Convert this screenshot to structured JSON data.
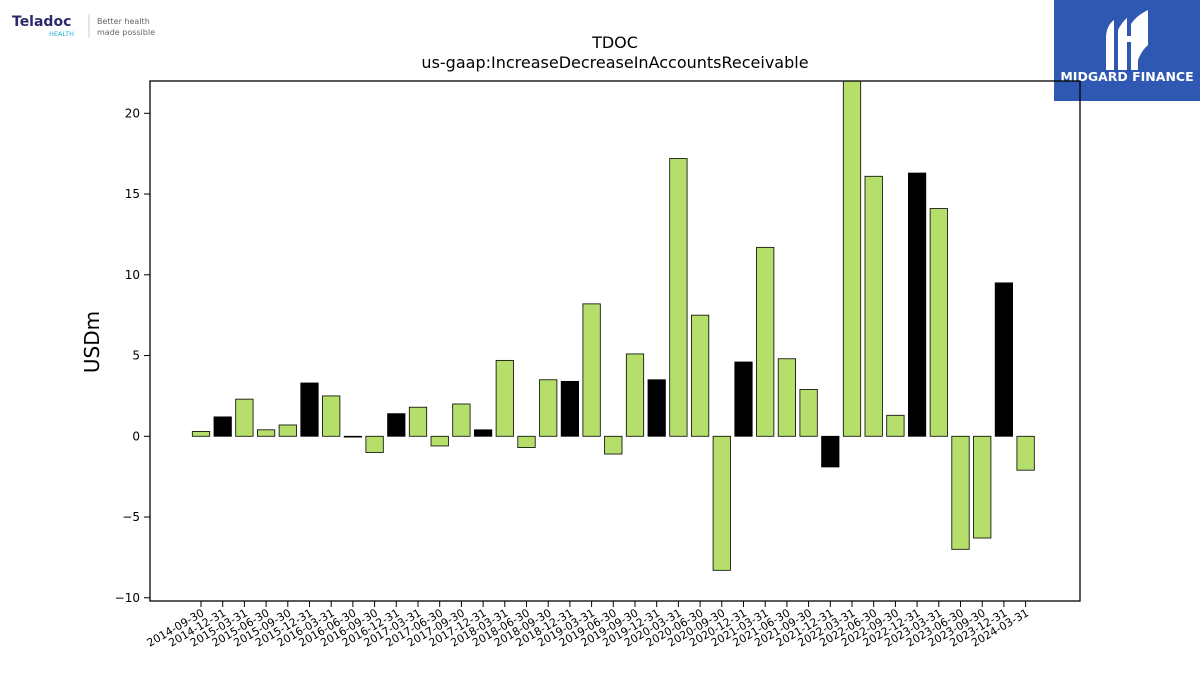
{
  "branding": {
    "left_logo": {
      "name": "Teladoc",
      "sub": "HEALTH",
      "tagline_line1": "Better health",
      "tagline_line2": "made possible",
      "color_text": "#2b2a6b",
      "color_sub": "#20b3d6"
    },
    "right_logo": {
      "name": "MIDGARD FINANCE",
      "color_bg": "#2f58b3",
      "color_text": "#ffffff"
    }
  },
  "chart_data": {
    "type": "bar",
    "title": "TDOC",
    "subtitle": "us-gaap:IncreaseDecreaseInAccountsReceivable",
    "ylabel": "USDm",
    "xlabel": "",
    "ylim": [
      -10.2,
      22
    ],
    "yticks": [
      -10,
      -5,
      0,
      5,
      10,
      15,
      20
    ],
    "grid": false,
    "colors": {
      "green": "#b5de6b",
      "black": "#000000"
    },
    "categories": [
      "2014-09-30",
      "2014-12-31",
      "2015-03-31",
      "2015-06-30",
      "2015-09-30",
      "2015-12-31",
      "2016-03-31",
      "2016-06-30",
      "2016-09-30",
      "2016-12-31",
      "2017-03-31",
      "2017-06-30",
      "2017-09-30",
      "2017-12-31",
      "2018-03-31",
      "2018-06-30",
      "2018-09-30",
      "2018-12-31",
      "2019-03-31",
      "2019-06-30",
      "2019-09-30",
      "2019-12-31",
      "2020-03-31",
      "2020-06-30",
      "2020-09-30",
      "2020-12-31",
      "2021-03-31",
      "2021-06-30",
      "2021-09-30",
      "2021-12-31",
      "2022-03-31",
      "2022-06-30",
      "2022-09-30",
      "2022-12-31",
      "2023-03-31",
      "2023-06-30",
      "2023-09-30",
      "2023-12-31",
      "2024-03-31"
    ],
    "values": [
      0.3,
      1.2,
      2.3,
      0.4,
      0.7,
      3.3,
      2.5,
      0.0,
      -1.0,
      1.4,
      1.8,
      -0.6,
      2.0,
      0.4,
      4.7,
      -0.7,
      3.5,
      3.4,
      8.2,
      -1.1,
      5.1,
      3.5,
      17.2,
      7.5,
      -8.3,
      4.6,
      11.7,
      4.8,
      2.9,
      -1.9,
      22.0,
      16.1,
      1.3,
      16.3,
      14.1,
      -7.0,
      -6.3,
      9.5,
      -2.1
    ],
    "bar_colors": [
      "green",
      "black",
      "green",
      "green",
      "green",
      "black",
      "green",
      "black",
      "green",
      "black",
      "green",
      "green",
      "green",
      "black",
      "green",
      "green",
      "green",
      "black",
      "green",
      "green",
      "green",
      "black",
      "green",
      "green",
      "green",
      "black",
      "green",
      "green",
      "green",
      "black",
      "green",
      "green",
      "green",
      "black",
      "green",
      "green",
      "green",
      "black",
      "green"
    ]
  }
}
